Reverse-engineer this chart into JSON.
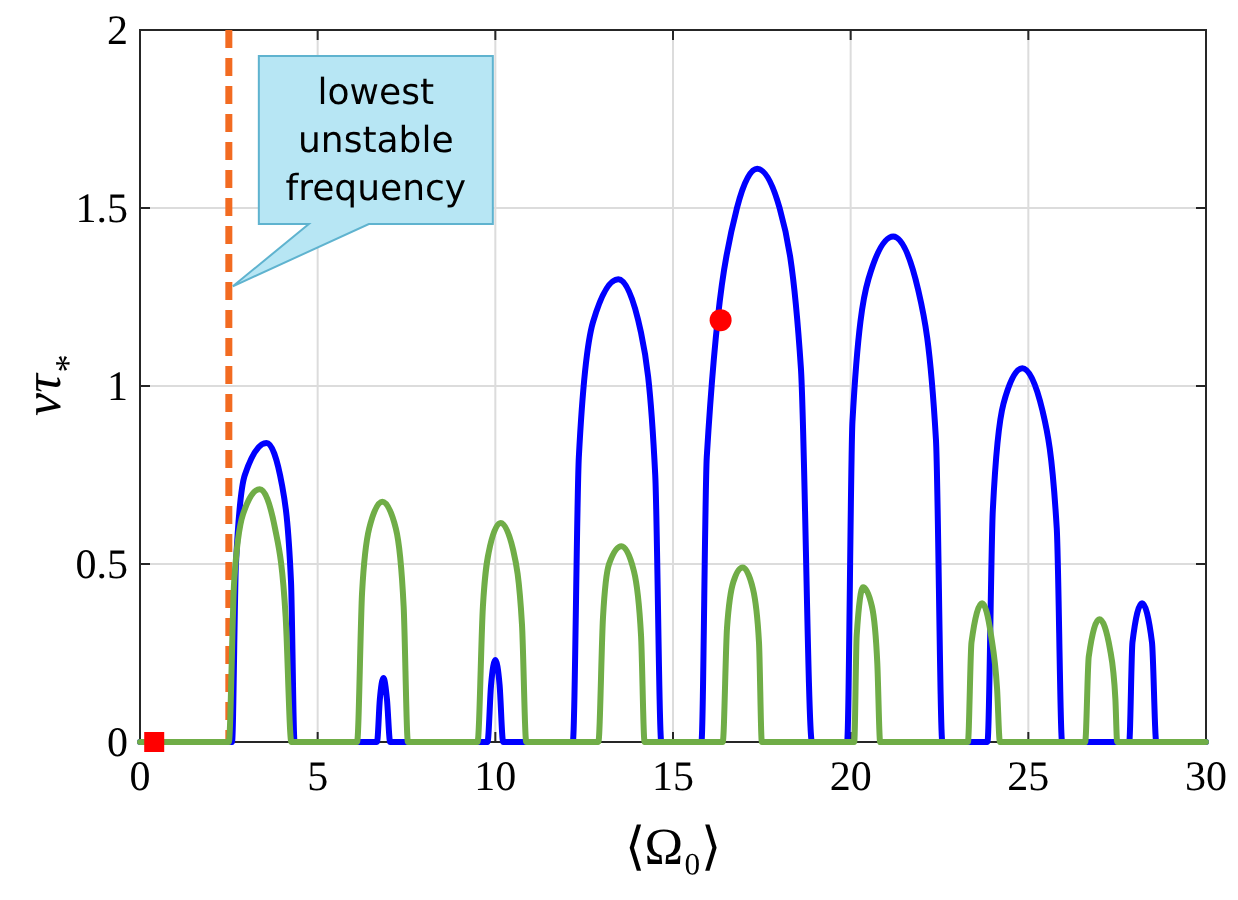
{
  "chart_data": {
    "type": "line",
    "xlabel": "⟨Ω₀⟩",
    "ylabel": "ντ$_{*}$",
    "xlim": [
      0,
      30
    ],
    "xticks": [
      0,
      5,
      10,
      15,
      20,
      25,
      30
    ],
    "ylim": [
      0,
      2
    ],
    "yticks": [
      0,
      0.5,
      1,
      1.5,
      2
    ],
    "grid": true,
    "line_style": "solid",
    "series": [
      {
        "color": "#0000ff",
        "x": [
          0,
          2.59,
          2.7,
          2.95,
          3.56,
          4.0,
          4.25,
          4.35,
          6.67,
          6.75,
          6.85,
          6.95,
          7.04,
          9.78,
          9.88,
          10.0,
          10.12,
          10.22,
          12.18,
          12.35,
          12.75,
          13.46,
          14.1,
          14.5,
          14.67,
          15.8,
          15.95,
          16.8,
          17.37,
          18.0,
          18.6,
          18.91,
          19.9,
          20.05,
          20.5,
          21.2,
          21.9,
          22.4,
          22.58,
          23.85,
          24.0,
          24.3,
          24.83,
          25.4,
          25.8,
          25.95,
          27.84,
          27.93,
          28.2,
          28.48,
          28.6,
          30
        ],
        "values": [
          0,
          0,
          0.5,
          0.75,
          0.84,
          0.72,
          0.45,
          0,
          0,
          0.12,
          0.18,
          0.12,
          0,
          0,
          0.16,
          0.23,
          0.16,
          0,
          0,
          0.8,
          1.18,
          1.3,
          1.15,
          0.75,
          0,
          0,
          0.8,
          1.5,
          1.61,
          1.5,
          1.05,
          0,
          0,
          0.9,
          1.3,
          1.42,
          1.27,
          0.85,
          0,
          0,
          0.65,
          0.95,
          1.05,
          0.93,
          0.6,
          0,
          0,
          0.28,
          0.39,
          0.28,
          0,
          0
        ]
      },
      {
        "color": "#70ad47",
        "x": [
          0,
          2.5,
          2.65,
          2.9,
          3.37,
          3.8,
          4.1,
          4.26,
          6.11,
          6.25,
          6.45,
          6.82,
          7.2,
          7.42,
          7.54,
          9.5,
          9.65,
          9.85,
          10.15,
          10.5,
          10.75,
          10.87,
          12.9,
          13.03,
          13.2,
          13.55,
          13.9,
          14.1,
          14.2,
          16.4,
          16.52,
          16.7,
          16.96,
          17.25,
          17.42,
          17.5,
          20.1,
          20.17,
          20.35,
          20.6,
          20.75,
          20.83,
          23.3,
          23.4,
          23.7,
          23.95,
          24.12,
          24.2,
          26.6,
          26.7,
          27.0,
          27.3,
          27.45,
          27.5,
          30
        ],
        "values": [
          0,
          0,
          0.45,
          0.64,
          0.71,
          0.6,
          0.35,
          0,
          0,
          0.42,
          0.6,
          0.675,
          0.6,
          0.38,
          0,
          0,
          0.38,
          0.55,
          0.615,
          0.54,
          0.33,
          0,
          0,
          0.35,
          0.5,
          0.55,
          0.48,
          0.3,
          0,
          0,
          0.32,
          0.45,
          0.49,
          0.43,
          0.28,
          0,
          0,
          0.3,
          0.435,
          0.38,
          0.22,
          0,
          0,
          0.28,
          0.39,
          0.3,
          0.15,
          0,
          0,
          0.24,
          0.345,
          0.26,
          0.12,
          0,
          0
        ]
      },
      {
        "type": "scatter",
        "color": "#ff0000",
        "marker": "square",
        "x": [
          0.4
        ],
        "values": [
          0
        ]
      },
      {
        "type": "scatter",
        "color": "#ff0000",
        "marker": "circle",
        "x": [
          16.34
        ],
        "values": [
          1.185
        ]
      }
    ],
    "ref_lines": [
      {
        "axis": "x",
        "value": 2.5,
        "color": "#f26b21",
        "line_style": "dashed"
      }
    ],
    "annotations": [
      {
        "text": "lowest unstable frequency",
        "x": 2.5,
        "y": 1.28
      }
    ]
  }
}
